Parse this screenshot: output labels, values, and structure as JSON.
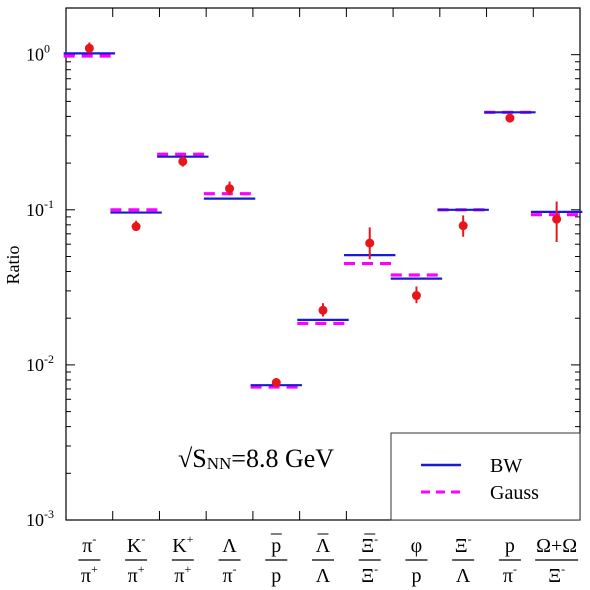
{
  "chart_data": {
    "type": "scatter",
    "ylabel": "Ratio",
    "yscale": "log",
    "ylim": [
      0.001,
      2
    ],
    "y_ticks": [
      {
        "value": 1,
        "base": "10",
        "exp": "0"
      },
      {
        "value": 0.1,
        "base": "10",
        "exp": "-1"
      },
      {
        "value": 0.01,
        "base": "10",
        "exp": "-2"
      },
      {
        "value": 0.001,
        "base": "10",
        "exp": "-3"
      }
    ],
    "annotation": {
      "prefix": "√S",
      "sub": "NN",
      "suffix": "=8.8 GeV"
    },
    "legend": {
      "position": "bottom-right",
      "entries": [
        "BW",
        "Gauss"
      ]
    },
    "colors": {
      "data": "#e8151b",
      "bw": "#1a1ad6",
      "gauss": "#ff00ff"
    },
    "categories": [
      {
        "num": "π",
        "num_sup": "-",
        "den": "π",
        "den_sup": "+",
        "num_bar": false,
        "den_bar": false
      },
      {
        "num": "K",
        "num_sup": "-",
        "den": "π",
        "den_sup": "+",
        "num_bar": false,
        "den_bar": false
      },
      {
        "num": "K",
        "num_sup": "+",
        "den": "π",
        "den_sup": "+",
        "num_bar": false,
        "den_bar": false
      },
      {
        "num": "Λ",
        "num_sup": "",
        "den": "π",
        "den_sup": "-",
        "num_bar": false,
        "den_bar": false
      },
      {
        "num": "p",
        "num_sup": "",
        "den": "p",
        "den_sup": "",
        "num_bar": true,
        "den_bar": false
      },
      {
        "num": "Λ",
        "num_sup": "",
        "den": "Λ",
        "den_sup": "",
        "num_bar": true,
        "den_bar": false
      },
      {
        "num": "Ξ",
        "num_sup": "-",
        "den": "Ξ",
        "den_sup": "-",
        "num_bar": true,
        "den_bar": false
      },
      {
        "num": "φ",
        "num_sup": "",
        "den": "p",
        "den_sup": "",
        "num_bar": false,
        "den_bar": false
      },
      {
        "num": "Ξ",
        "num_sup": "-",
        "den": "Λ",
        "den_sup": "",
        "num_bar": false,
        "den_bar": false
      },
      {
        "num": "p",
        "num_sup": "",
        "den": "π",
        "den_sup": "-",
        "num_bar": false,
        "den_bar": false
      },
      {
        "num": "Ω+Ω",
        "num_sup": "",
        "den": "Ξ",
        "den_sup": "-",
        "num_bar": false,
        "den_bar": false
      }
    ],
    "series": [
      {
        "name": "data",
        "values": [
          1.1,
          0.078,
          0.205,
          0.137,
          0.0077,
          0.0225,
          0.061,
          0.028,
          0.079,
          0.39,
          0.087
        ],
        "errors": [
          [
            1.02,
            1.2
          ],
          [
            0.073,
            0.085
          ],
          [
            0.19,
            0.22
          ],
          [
            0.124,
            0.152
          ],
          [
            0.0072,
            0.0082
          ],
          [
            0.0205,
            0.025
          ],
          [
            0.048,
            0.077
          ],
          [
            0.025,
            0.032
          ],
          [
            0.067,
            0.092
          ],
          [
            0.37,
            0.41
          ],
          [
            0.062,
            0.113
          ]
        ]
      },
      {
        "name": "BW",
        "values": [
          1.02,
          0.096,
          0.22,
          0.118,
          0.0074,
          0.0195,
          0.051,
          0.036,
          0.1,
          0.425,
          0.097
        ]
      },
      {
        "name": "Gauss",
        "values": [
          0.98,
          0.1,
          0.228,
          0.127,
          0.0072,
          0.0185,
          0.045,
          0.038,
          0.1,
          0.425,
          0.093
        ]
      }
    ]
  }
}
